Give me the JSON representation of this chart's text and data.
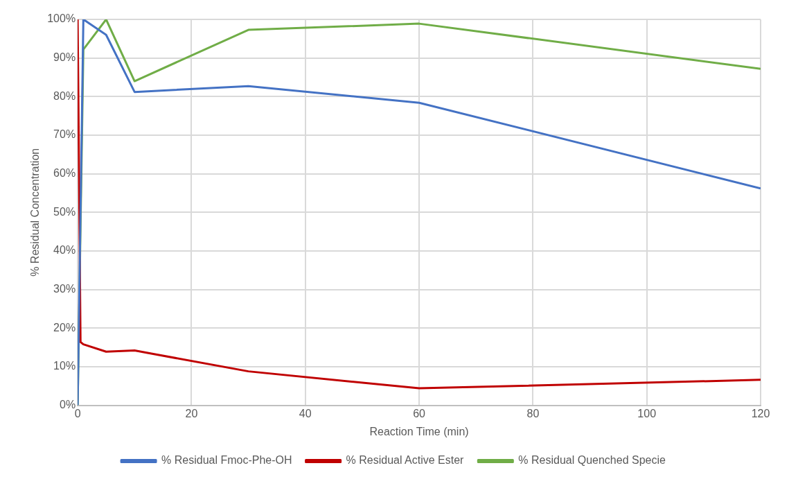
{
  "chart_data": {
    "type": "line",
    "xlabel": "Reaction Time (min)",
    "ylabel": "% Residual Concentration",
    "xlim": [
      0,
      120
    ],
    "xticks": [
      0,
      20,
      40,
      60,
      80,
      100,
      120
    ],
    "ylim": [
      0,
      100
    ],
    "yticks": [
      {
        "value": 0,
        "label": "0%"
      },
      {
        "value": 10,
        "label": "10%"
      },
      {
        "value": 20,
        "label": "20%"
      },
      {
        "value": 30,
        "label": "30%"
      },
      {
        "value": 40,
        "label": "40%"
      },
      {
        "value": 50,
        "label": "50%"
      },
      {
        "value": 60,
        "label": "60%"
      },
      {
        "value": 70,
        "label": "70%"
      },
      {
        "value": 80,
        "label": "80%"
      },
      {
        "value": 90,
        "label": "90%"
      },
      {
        "value": 100,
        "label": "100%"
      }
    ],
    "grid": true,
    "legend": "bottom",
    "marker": "none",
    "line_style": "solid",
    "series": [
      {
        "name": "% Residual Fmoc-Phe-OH",
        "color": "#4472c4",
        "x": [
          0,
          1,
          5,
          10,
          30,
          60,
          120
        ],
        "values": [
          0,
          100,
          96,
          81.2,
          82.7,
          78.4,
          56.2
        ]
      },
      {
        "name": "% Residual Active Ester",
        "color": "#c00000",
        "x": [
          0,
          0.5,
          1,
          5,
          10,
          30,
          60,
          120
        ],
        "values": [
          100,
          16.4,
          15.8,
          13.9,
          14.2,
          8.8,
          4.4,
          6.6
        ]
      },
      {
        "name": "% Residual Quenched Specie",
        "color": "#70ad47",
        "x": [
          0,
          1,
          5,
          10,
          30,
          60,
          120
        ],
        "values": [
          0,
          92.2,
          100,
          84,
          97.3,
          98.9,
          87.2
        ]
      }
    ]
  }
}
